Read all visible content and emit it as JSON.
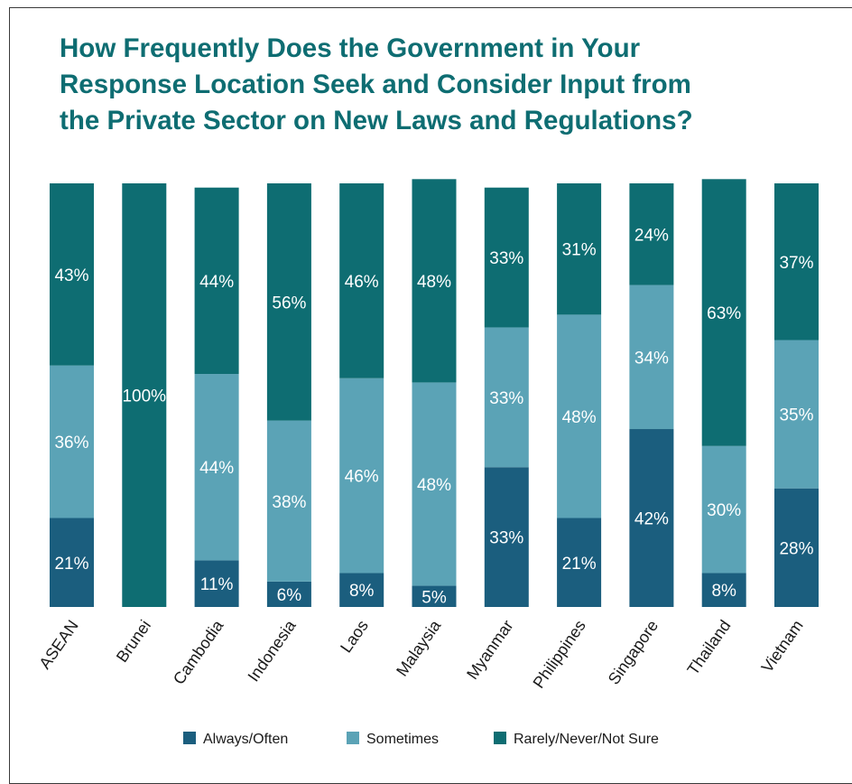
{
  "chart_data": {
    "type": "bar",
    "stacked": true,
    "title_lines": [
      "How Frequently Does the Government in Your",
      "Response Location Seek and Consider Input from",
      "the Private Sector on New Laws and Regulations?"
    ],
    "categories": [
      "ASEAN",
      "Brunei",
      "Cambodia",
      "Indonesia",
      "Laos",
      "Malaysia",
      "Myanmar",
      "Philippines",
      "Singapore",
      "Thailand",
      "Vietnam"
    ],
    "series": [
      {
        "name": "Always/Often",
        "color": "#1b5e7e",
        "values": [
          21,
          0,
          11,
          6,
          8,
          5,
          33,
          21,
          42,
          8,
          28
        ]
      },
      {
        "name": "Sometimes",
        "color": "#5ba3b6",
        "values": [
          36,
          0,
          44,
          38,
          46,
          48,
          33,
          48,
          34,
          30,
          35
        ]
      },
      {
        "name": "Rarely/Never/Not Sure",
        "color": "#0e6d72",
        "values": [
          43,
          100,
          44,
          56,
          46,
          48,
          33,
          31,
          24,
          63,
          37
        ]
      }
    ],
    "value_suffix": "%",
    "ylim": [
      0,
      100
    ],
    "grid": false,
    "legend_position": "bottom"
  }
}
